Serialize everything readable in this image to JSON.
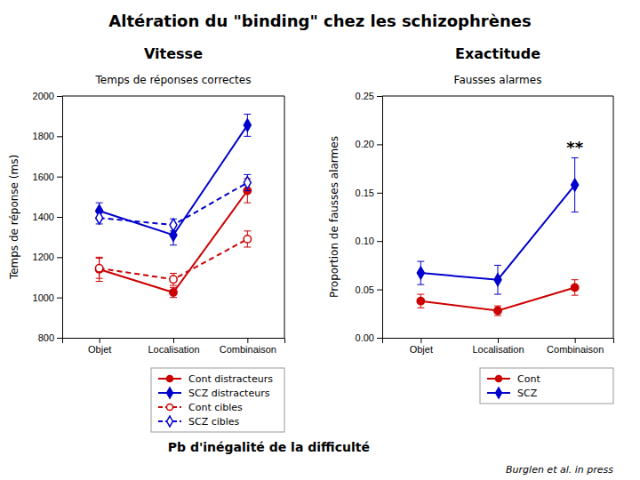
{
  "title": "Altération du \"binding\" chez les schizophrènes",
  "annotations": [
    "Pb d'inégalité de la difficulté",
    "Burglen et al. in press"
  ],
  "chart_data": [
    {
      "type": "line",
      "subtitle": "Vitesse",
      "title": "Temps de réponses correctes",
      "y_label": "Temps de réponse (ms)",
      "categories": [
        "Objet",
        "Localisation",
        "Combinaison"
      ],
      "ylim": [
        800,
        2000
      ],
      "yticks": [
        800,
        1000,
        1200,
        1400,
        1600,
        1800,
        2000
      ],
      "grid": false,
      "legend": "lower right",
      "series": [
        {
          "name": "Cont distracteurs",
          "color": "#cc0000",
          "marker": "circle",
          "line_style": "solid",
          "values": [
            1140,
            1025,
            1530
          ],
          "errors": [
            60,
            25,
            60
          ]
        },
        {
          "name": "SCZ distracteurs",
          "color": "#0000cc",
          "marker": "diamond",
          "line_style": "solid",
          "values": [
            1430,
            1310,
            1855
          ],
          "errors": [
            40,
            50,
            55
          ]
        },
        {
          "name": "Cont cibles",
          "color": "#cc0000",
          "marker": "open-circle",
          "line_style": "dashed",
          "values": [
            1145,
            1090,
            1290
          ],
          "errors": [
            50,
            30,
            40
          ]
        },
        {
          "name": "SCZ cibles",
          "color": "#0000cc",
          "marker": "open-diamond",
          "line_style": "dashed",
          "values": [
            1395,
            1360,
            1570
          ],
          "errors": [
            30,
            30,
            40
          ]
        }
      ]
    },
    {
      "type": "line",
      "subtitle": "Exactitude",
      "title": "Fausses alarmes",
      "y_label": "Proportion de fausses alarmes",
      "categories": [
        "Objet",
        "Localisation",
        "Combinaison"
      ],
      "ylim": [
        0.0,
        0.25
      ],
      "yticks": [
        {
          "value": 0,
          "label": "0.00"
        },
        0.05,
        {
          "value": 0.1,
          "label": "0.10"
        },
        0.15,
        {
          "value": 0.2,
          "label": "0.20"
        },
        0.25
      ],
      "grid": false,
      "legend": "lower right",
      "annotations": [
        {
          "text": "**",
          "x": "Combinaison"
        }
      ],
      "series": [
        {
          "name": "Cont",
          "color": "#cc0000",
          "marker": "circle",
          "line_style": "solid",
          "values": [
            0.038,
            0.028,
            0.052
          ],
          "errors": [
            0.007,
            0.005,
            0.008
          ]
        },
        {
          "name": "SCZ",
          "color": "#0000cc",
          "marker": "diamond",
          "line_style": "solid",
          "values": [
            0.067,
            0.06,
            0.158
          ],
          "errors": [
            0.012,
            0.015,
            0.028
          ]
        }
      ]
    }
  ]
}
